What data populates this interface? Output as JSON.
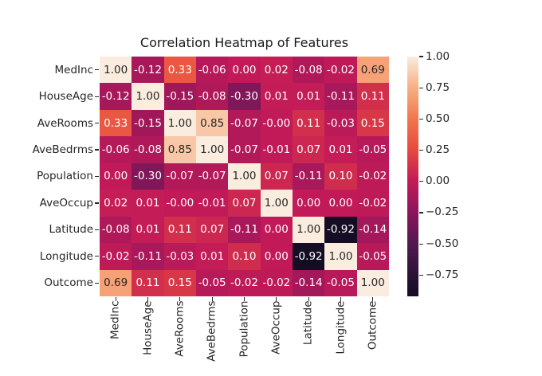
{
  "chart_data": {
    "type": "heatmap",
    "title": "Correlation Heatmap of Features",
    "categories": [
      "MedInc",
      "HouseAge",
      "AveRooms",
      "AveBedrms",
      "Population",
      "AveOccup",
      "Latitude",
      "Longitude",
      "Outcome"
    ],
    "matrix": [
      [
        "1.00",
        "-0.12",
        "0.33",
        "-0.06",
        "0.00",
        "0.02",
        "-0.08",
        "-0.02",
        "0.69"
      ],
      [
        "-0.12",
        "1.00",
        "-0.15",
        "-0.08",
        "-0.30",
        "0.01",
        "0.01",
        "-0.11",
        "0.11"
      ],
      [
        "0.33",
        "-0.15",
        "1.00",
        "0.85",
        "-0.07",
        "-0.00",
        "0.11",
        "-0.03",
        "0.15"
      ],
      [
        "-0.06",
        "-0.08",
        "0.85",
        "1.00",
        "-0.07",
        "-0.01",
        "0.07",
        "0.01",
        "-0.05"
      ],
      [
        "0.00",
        "-0.30",
        "-0.07",
        "-0.07",
        "1.00",
        "0.07",
        "-0.11",
        "0.10",
        "-0.02"
      ],
      [
        "0.02",
        "0.01",
        "-0.00",
        "-0.01",
        "0.07",
        "1.00",
        "0.00",
        "0.00",
        "-0.02"
      ],
      [
        "-0.08",
        "0.01",
        "0.11",
        "0.07",
        "-0.11",
        "0.00",
        "1.00",
        "-0.92",
        "-0.14"
      ],
      [
        "-0.02",
        "-0.11",
        "-0.03",
        "0.01",
        "0.10",
        "0.00",
        "-0.92",
        "1.00",
        "-0.05"
      ],
      [
        "0.69",
        "0.11",
        "0.15",
        "-0.05",
        "-0.02",
        "-0.02",
        "-0.14",
        "-0.05",
        "1.00"
      ]
    ],
    "colorbar": {
      "tick_labels": [
        "1.00",
        "0.75",
        "0.50",
        "0.25",
        "0.00",
        "−0.25",
        "−0.50",
        "−0.75"
      ],
      "tick_values": [
        1.0,
        0.75,
        0.5,
        0.25,
        0.0,
        -0.25,
        -0.5,
        -0.75
      ],
      "vmin": -0.92,
      "vmax": 1.0
    },
    "colormap": {
      "name": "rocket",
      "stops": [
        [
          -0.92,
          "#150D23"
        ],
        [
          -0.75,
          "#2B1238"
        ],
        [
          -0.5,
          "#511A4E"
        ],
        [
          -0.25,
          "#8A165C"
        ],
        [
          0.0,
          "#C21A58"
        ],
        [
          0.25,
          "#E64A3E"
        ],
        [
          0.5,
          "#F1764E"
        ],
        [
          0.75,
          "#F7AF83"
        ],
        [
          1.0,
          "#FAECDE"
        ]
      ]
    },
    "annotation_color_on_dark": "#ffffff",
    "annotation_color_on_light": "#262626",
    "background": "#ffffff",
    "grid": false,
    "legend_position": "right-colorbar"
  }
}
